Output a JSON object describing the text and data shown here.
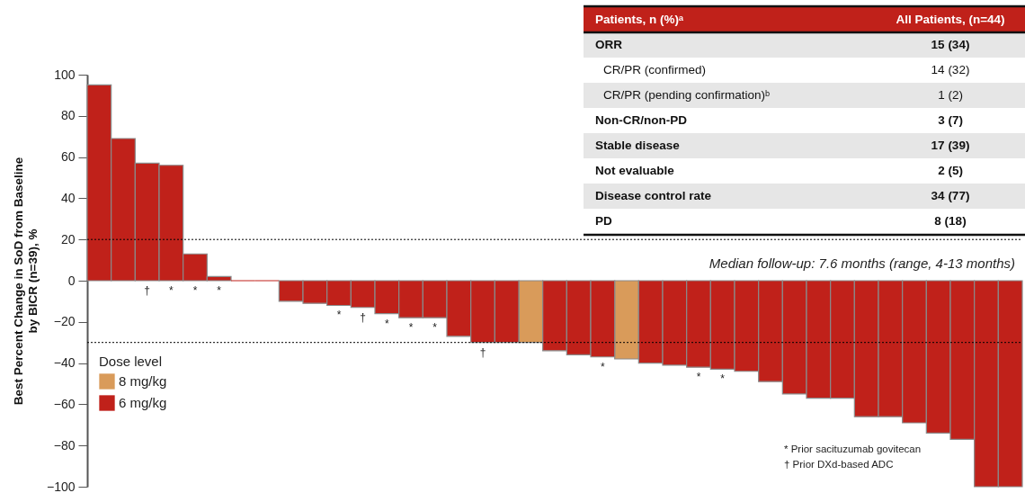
{
  "chart_data": {
    "type": "bar",
    "ylabel": "Best Percent Change in SoD from Baseline\nby BICR (n=39), %",
    "legend_title": "Dose level",
    "categories": [
      null,
      null,
      null,
      null,
      null,
      null,
      null,
      null,
      null,
      null,
      null,
      null,
      null,
      null,
      null,
      null,
      null,
      null,
      null,
      null,
      null,
      null,
      null,
      null,
      null,
      null,
      null,
      null,
      null,
      null,
      null,
      null,
      null,
      null,
      null,
      null,
      null,
      null,
      null
    ],
    "series": [
      {
        "name": "8 mg/kg",
        "color": "#d99b5a",
        "values": [
          null,
          null,
          null,
          null,
          null,
          null,
          null,
          null,
          null,
          null,
          null,
          null,
          null,
          null,
          null,
          null,
          null,
          null,
          -30,
          null,
          null,
          null,
          -38,
          null,
          null,
          null,
          null,
          null,
          null,
          null,
          null,
          null,
          null,
          null,
          null,
          null,
          null,
          null,
          null
        ]
      },
      {
        "name": "6 mg/kg",
        "color": "#c0211a",
        "values": [
          95,
          69,
          57,
          56,
          13,
          2,
          0,
          0,
          -10,
          -11,
          -12,
          -13,
          -16,
          -18,
          -18,
          -27,
          -30,
          -30,
          null,
          -34,
          -36,
          -37,
          null,
          -40,
          -41,
          -42,
          -43,
          -44,
          -49,
          -55,
          -57,
          -57,
          -66,
          -66,
          -69,
          -74,
          -77,
          -100,
          -100
        ],
        "value_labels": [
          null,
          null,
          "†",
          "*",
          "*",
          "*",
          null,
          null,
          null,
          null,
          "*",
          "†",
          "*",
          "*",
          "*",
          null,
          "†",
          null,
          null,
          null,
          null,
          "*",
          null,
          null,
          null,
          "*",
          "*",
          null,
          null,
          null,
          null,
          null,
          null,
          null,
          null,
          null,
          null,
          null,
          null
        ]
      }
    ],
    "ylim": [
      -100,
      100
    ],
    "yticks": [
      -100,
      -80,
      -60,
      -40,
      -20,
      0,
      20,
      40,
      60,
      80,
      100
    ],
    "grid": false,
    "legend": "bottom left",
    "ref_lines": [
      {
        "axis": "y",
        "value": 20,
        "color": "#000000",
        "line_style": "dotted"
      },
      {
        "axis": "y",
        "value": -30,
        "color": "#000000",
        "line_style": "dotted"
      }
    ],
    "annotations": [
      "Median follow-up: 7.6 months (range, 4-13 months)",
      "* Prior sacituzumab govitecan",
      "† Prior DXd-based ADC",
      "Patients, n (%)ᵃ",
      "All Patients, (n=44)",
      "ORR",
      "15 (34)",
      "CR/PR (confirmed)",
      "14 (32)",
      "CR/PR (pending confirmation)ᵇ",
      "1 (2)",
      "Non-CR/non-PD",
      "3 (7)",
      "Stable disease",
      "17 (39)",
      "Not evaluable",
      "2 (5)",
      "Disease control rate",
      "34 (77)",
      "PD",
      "8 (18)"
    ]
  }
}
